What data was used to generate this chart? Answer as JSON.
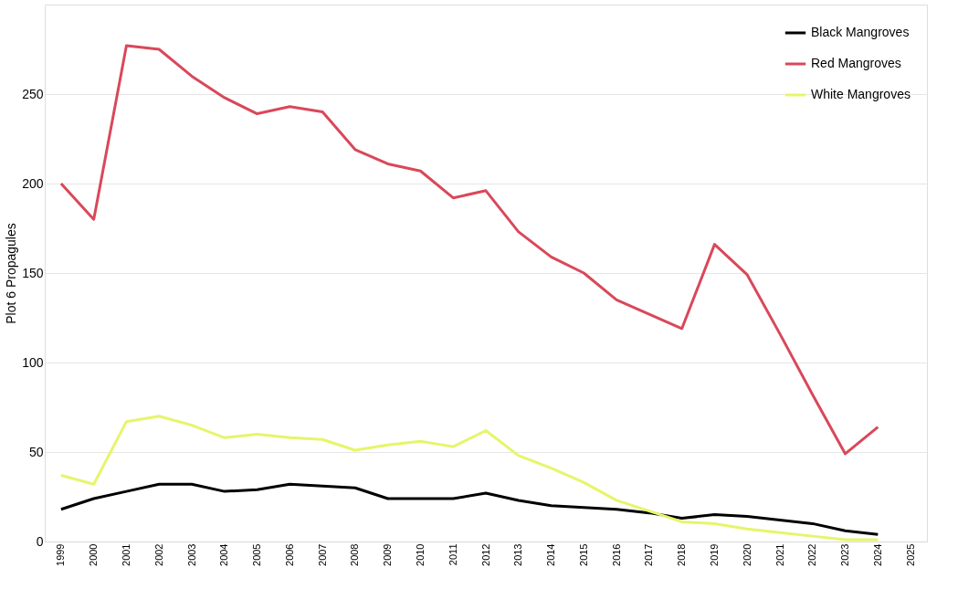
{
  "chart_data": {
    "type": "line",
    "ylabel": "Plot 6 Propagules",
    "categories": [
      "1999",
      "2000",
      "2001",
      "2002",
      "2003",
      "2004",
      "2005",
      "2006",
      "2007",
      "2008",
      "2009",
      "2010",
      "2011",
      "2012",
      "2013",
      "2014",
      "2015",
      "2016",
      "2017",
      "2018",
      "2019",
      "2020",
      "2021",
      "2022",
      "2023",
      "2024",
      "2025"
    ],
    "series": [
      {
        "name": "Black Mangroves",
        "color": "#000000",
        "values": [
          18,
          24,
          28,
          32,
          32,
          28,
          29,
          32,
          31,
          30,
          24,
          24,
          24,
          27,
          23,
          20,
          19,
          18,
          16,
          13,
          15,
          14,
          12,
          10,
          6,
          4,
          null
        ]
      },
      {
        "name": "Red Mangroves",
        "color": "#d9485a",
        "values": [
          200,
          180,
          277,
          275,
          260,
          248,
          239,
          243,
          240,
          219,
          211,
          207,
          192,
          196,
          173,
          159,
          150,
          135,
          127,
          119,
          166,
          149,
          116,
          82,
          49,
          64,
          null
        ]
      },
      {
        "name": "White Mangroves",
        "color": "#e6f56a",
        "values": [
          37,
          32,
          67,
          70,
          65,
          58,
          60,
          58,
          57,
          51,
          54,
          56,
          53,
          62,
          48,
          41,
          33,
          23,
          17,
          11,
          10,
          7,
          5,
          3,
          1,
          1,
          null
        ]
      }
    ],
    "ylim": [
      0,
      300
    ],
    "yticks": [
      0,
      50,
      100,
      150,
      200,
      250
    ],
    "grid": "y",
    "legend": "top right",
    "marker": "none",
    "line_style": "solid"
  }
}
